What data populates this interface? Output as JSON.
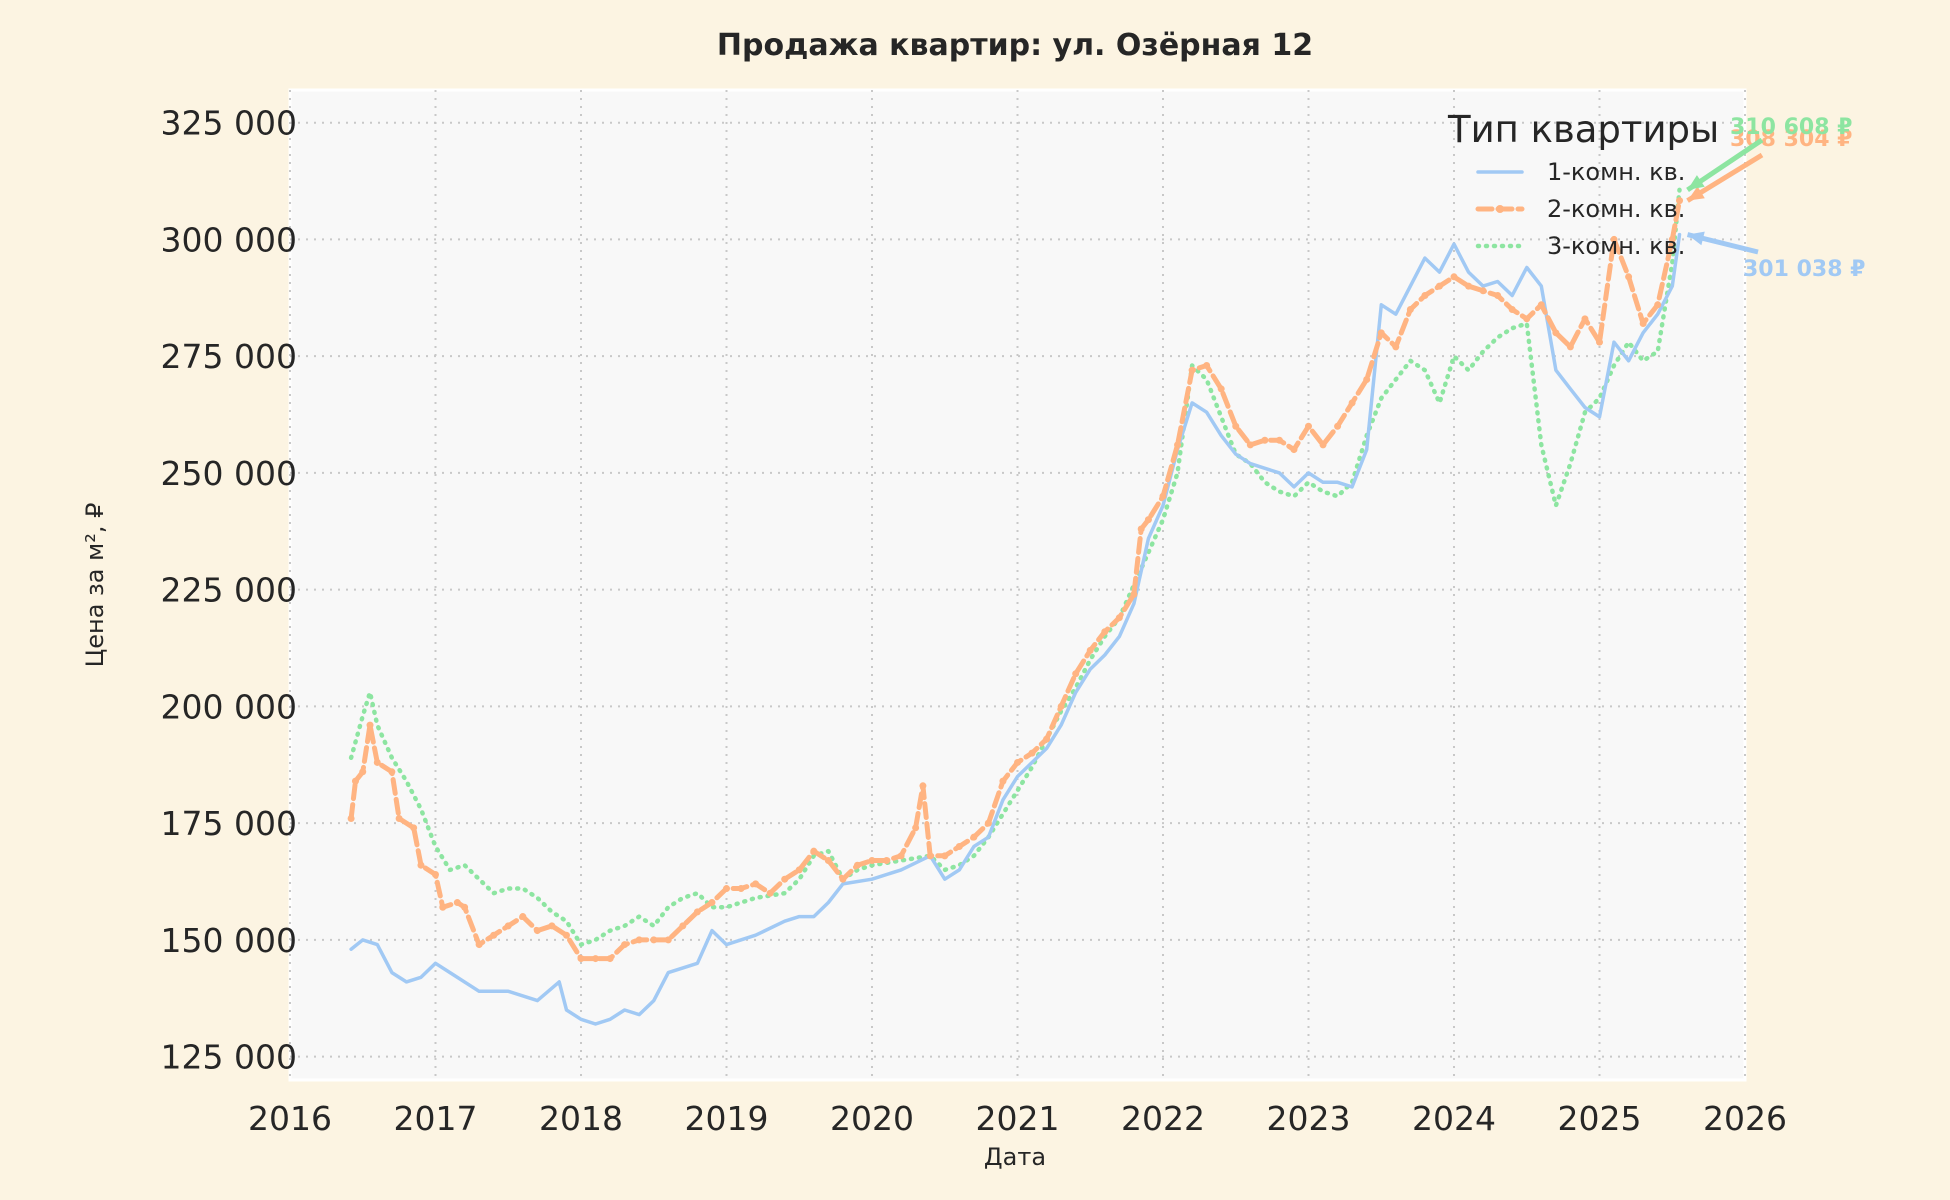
{
  "chart_data": {
    "type": "line",
    "title": "Продажа квартир: ул. Озёрная 12",
    "xlabel": "Дата",
    "ylabel": "Цена за м², ₽",
    "xlim": [
      2016,
      2026
    ],
    "ylim": [
      120000,
      332000
    ],
    "x_ticks": [
      "2016",
      "2017",
      "2018",
      "2019",
      "2020",
      "2021",
      "2022",
      "2023",
      "2024",
      "2025",
      "2026"
    ],
    "y_ticks": [
      125000,
      150000,
      175000,
      200000,
      225000,
      250000,
      275000,
      300000,
      325000
    ],
    "y_tick_labels": [
      "125 000",
      "150 000",
      "175 000",
      "200 000",
      "225 000",
      "250 000",
      "275 000",
      "300 000",
      "325 000"
    ],
    "grid": true,
    "legend": {
      "title": "Тип квартиры",
      "position": "top-right"
    },
    "series": [
      {
        "name": "1-комн. кв.",
        "color": "#a1c9f4",
        "style": "solid",
        "end_label": "301 038 ₽",
        "points": [
          [
            2016.42,
            148000
          ],
          [
            2016.5,
            150000
          ],
          [
            2016.6,
            149000
          ],
          [
            2016.7,
            143000
          ],
          [
            2016.8,
            141000
          ],
          [
            2016.9,
            142000
          ],
          [
            2017.0,
            145000
          ],
          [
            2017.1,
            143000
          ],
          [
            2017.3,
            139000
          ],
          [
            2017.5,
            139000
          ],
          [
            2017.7,
            137000
          ],
          [
            2017.85,
            141000
          ],
          [
            2017.9,
            135000
          ],
          [
            2018.0,
            133000
          ],
          [
            2018.1,
            132000
          ],
          [
            2018.2,
            133000
          ],
          [
            2018.3,
            135000
          ],
          [
            2018.4,
            134000
          ],
          [
            2018.5,
            137000
          ],
          [
            2018.6,
            143000
          ],
          [
            2018.7,
            144000
          ],
          [
            2018.8,
            145000
          ],
          [
            2018.9,
            152000
          ],
          [
            2019.0,
            149000
          ],
          [
            2019.2,
            151000
          ],
          [
            2019.4,
            154000
          ],
          [
            2019.5,
            155000
          ],
          [
            2019.6,
            155000
          ],
          [
            2019.7,
            158000
          ],
          [
            2019.8,
            162000
          ],
          [
            2020.0,
            163000
          ],
          [
            2020.2,
            165000
          ],
          [
            2020.4,
            168000
          ],
          [
            2020.5,
            163000
          ],
          [
            2020.6,
            165000
          ],
          [
            2020.7,
            170000
          ],
          [
            2020.8,
            172000
          ],
          [
            2020.9,
            180000
          ],
          [
            2021.0,
            185000
          ],
          [
            2021.1,
            188000
          ],
          [
            2021.2,
            191000
          ],
          [
            2021.3,
            196000
          ],
          [
            2021.4,
            203000
          ],
          [
            2021.5,
            208000
          ],
          [
            2021.6,
            211000
          ],
          [
            2021.7,
            215000
          ],
          [
            2021.8,
            222000
          ],
          [
            2021.9,
            236000
          ],
          [
            2022.0,
            243000
          ],
          [
            2022.1,
            255000
          ],
          [
            2022.2,
            265000
          ],
          [
            2022.3,
            263000
          ],
          [
            2022.4,
            258000
          ],
          [
            2022.5,
            254000
          ],
          [
            2022.6,
            252000
          ],
          [
            2022.7,
            251000
          ],
          [
            2022.8,
            250000
          ],
          [
            2022.9,
            247000
          ],
          [
            2023.0,
            250000
          ],
          [
            2023.1,
            248000
          ],
          [
            2023.2,
            248000
          ],
          [
            2023.3,
            247000
          ],
          [
            2023.4,
            255000
          ],
          [
            2023.5,
            286000
          ],
          [
            2023.6,
            284000
          ],
          [
            2023.7,
            290000
          ],
          [
            2023.8,
            296000
          ],
          [
            2023.9,
            293000
          ],
          [
            2024.0,
            299000
          ],
          [
            2024.1,
            293000
          ],
          [
            2024.2,
            290000
          ],
          [
            2024.3,
            291000
          ],
          [
            2024.4,
            288000
          ],
          [
            2024.5,
            294000
          ],
          [
            2024.6,
            290000
          ],
          [
            2024.7,
            272000
          ],
          [
            2024.8,
            268000
          ],
          [
            2024.9,
            264000
          ],
          [
            2025.0,
            262000
          ],
          [
            2025.1,
            278000
          ],
          [
            2025.2,
            274000
          ],
          [
            2025.3,
            280000
          ],
          [
            2025.4,
            284000
          ],
          [
            2025.5,
            290000
          ],
          [
            2025.55,
            301038
          ]
        ]
      },
      {
        "name": "2-комн. кв.",
        "color": "#ffb482",
        "style": "dashed-marker",
        "end_label": "308 304 ₽",
        "points": [
          [
            2016.42,
            176000
          ],
          [
            2016.45,
            184000
          ],
          [
            2016.5,
            186000
          ],
          [
            2016.55,
            196000
          ],
          [
            2016.6,
            188000
          ],
          [
            2016.7,
            186000
          ],
          [
            2016.75,
            176000
          ],
          [
            2016.85,
            174000
          ],
          [
            2016.9,
            166000
          ],
          [
            2017.0,
            164000
          ],
          [
            2017.05,
            157000
          ],
          [
            2017.15,
            158000
          ],
          [
            2017.2,
            157000
          ],
          [
            2017.3,
            149000
          ],
          [
            2017.4,
            151000
          ],
          [
            2017.5,
            153000
          ],
          [
            2017.6,
            155000
          ],
          [
            2017.7,
            152000
          ],
          [
            2017.8,
            153000
          ],
          [
            2017.9,
            151000
          ],
          [
            2018.0,
            146000
          ],
          [
            2018.1,
            146000
          ],
          [
            2018.2,
            146000
          ],
          [
            2018.3,
            149000
          ],
          [
            2018.4,
            150000
          ],
          [
            2018.5,
            150000
          ],
          [
            2018.6,
            150000
          ],
          [
            2018.7,
            153000
          ],
          [
            2018.8,
            156000
          ],
          [
            2018.9,
            158000
          ],
          [
            2019.0,
            161000
          ],
          [
            2019.1,
            161000
          ],
          [
            2019.2,
            162000
          ],
          [
            2019.3,
            160000
          ],
          [
            2019.4,
            163000
          ],
          [
            2019.5,
            165000
          ],
          [
            2019.6,
            169000
          ],
          [
            2019.7,
            167000
          ],
          [
            2019.8,
            163000
          ],
          [
            2019.9,
            166000
          ],
          [
            2020.0,
            167000
          ],
          [
            2020.1,
            167000
          ],
          [
            2020.2,
            168000
          ],
          [
            2020.3,
            174000
          ],
          [
            2020.35,
            183000
          ],
          [
            2020.4,
            168000
          ],
          [
            2020.5,
            168000
          ],
          [
            2020.6,
            170000
          ],
          [
            2020.7,
            172000
          ],
          [
            2020.8,
            175000
          ],
          [
            2020.9,
            184000
          ],
          [
            2021.0,
            188000
          ],
          [
            2021.1,
            190000
          ],
          [
            2021.2,
            193000
          ],
          [
            2021.3,
            200000
          ],
          [
            2021.4,
            207000
          ],
          [
            2021.5,
            212000
          ],
          [
            2021.6,
            216000
          ],
          [
            2021.7,
            219000
          ],
          [
            2021.8,
            224000
          ],
          [
            2021.85,
            238000
          ],
          [
            2021.9,
            240000
          ],
          [
            2022.0,
            245000
          ],
          [
            2022.1,
            256000
          ],
          [
            2022.2,
            272000
          ],
          [
            2022.3,
            273000
          ],
          [
            2022.4,
            268000
          ],
          [
            2022.5,
            260000
          ],
          [
            2022.6,
            256000
          ],
          [
            2022.7,
            257000
          ],
          [
            2022.8,
            257000
          ],
          [
            2022.9,
            255000
          ],
          [
            2023.0,
            260000
          ],
          [
            2023.1,
            256000
          ],
          [
            2023.2,
            260000
          ],
          [
            2023.3,
            265000
          ],
          [
            2023.4,
            270000
          ],
          [
            2023.5,
            280000
          ],
          [
            2023.6,
            277000
          ],
          [
            2023.7,
            285000
          ],
          [
            2023.8,
            288000
          ],
          [
            2023.9,
            290000
          ],
          [
            2024.0,
            292000
          ],
          [
            2024.1,
            290000
          ],
          [
            2024.2,
            289000
          ],
          [
            2024.3,
            288000
          ],
          [
            2024.4,
            285000
          ],
          [
            2024.5,
            283000
          ],
          [
            2024.6,
            286000
          ],
          [
            2024.7,
            280000
          ],
          [
            2024.8,
            277000
          ],
          [
            2024.9,
            283000
          ],
          [
            2025.0,
            278000
          ],
          [
            2025.1,
            300000
          ],
          [
            2025.2,
            292000
          ],
          [
            2025.3,
            282000
          ],
          [
            2025.4,
            286000
          ],
          [
            2025.5,
            300000
          ],
          [
            2025.55,
            308304
          ]
        ]
      },
      {
        "name": "3-комн. кв.",
        "color": "#8de5a1",
        "style": "dotted",
        "end_label": "310 608 ₽",
        "points": [
          [
            2016.42,
            189000
          ],
          [
            2016.5,
            198000
          ],
          [
            2016.55,
            203000
          ],
          [
            2016.6,
            196000
          ],
          [
            2016.7,
            189000
          ],
          [
            2016.8,
            184000
          ],
          [
            2016.9,
            178000
          ],
          [
            2017.0,
            170000
          ],
          [
            2017.1,
            165000
          ],
          [
            2017.2,
            166000
          ],
          [
            2017.3,
            163000
          ],
          [
            2017.4,
            160000
          ],
          [
            2017.5,
            161000
          ],
          [
            2017.6,
            161000
          ],
          [
            2017.7,
            159000
          ],
          [
            2017.8,
            156000
          ],
          [
            2017.9,
            154000
          ],
          [
            2018.0,
            149000
          ],
          [
            2018.1,
            150000
          ],
          [
            2018.2,
            152000
          ],
          [
            2018.3,
            153000
          ],
          [
            2018.4,
            155000
          ],
          [
            2018.5,
            153000
          ],
          [
            2018.6,
            157000
          ],
          [
            2018.7,
            159000
          ],
          [
            2018.8,
            160000
          ],
          [
            2018.9,
            157000
          ],
          [
            2019.0,
            157000
          ],
          [
            2019.2,
            159000
          ],
          [
            2019.4,
            160000
          ],
          [
            2019.5,
            163000
          ],
          [
            2019.6,
            168000
          ],
          [
            2019.7,
            169000
          ],
          [
            2019.8,
            163000
          ],
          [
            2019.9,
            165000
          ],
          [
            2020.0,
            166000
          ],
          [
            2020.2,
            167000
          ],
          [
            2020.4,
            168000
          ],
          [
            2020.5,
            165000
          ],
          [
            2020.6,
            166000
          ],
          [
            2020.7,
            168000
          ],
          [
            2020.8,
            172000
          ],
          [
            2020.9,
            177000
          ],
          [
            2021.0,
            182000
          ],
          [
            2021.1,
            187000
          ],
          [
            2021.2,
            193000
          ],
          [
            2021.3,
            199000
          ],
          [
            2021.4,
            204000
          ],
          [
            2021.5,
            210000
          ],
          [
            2021.6,
            215000
          ],
          [
            2021.7,
            219000
          ],
          [
            2021.8,
            226000
          ],
          [
            2021.9,
            233000
          ],
          [
            2022.0,
            240000
          ],
          [
            2022.1,
            250000
          ],
          [
            2022.2,
            273000
          ],
          [
            2022.3,
            270000
          ],
          [
            2022.4,
            262000
          ],
          [
            2022.5,
            254000
          ],
          [
            2022.6,
            252000
          ],
          [
            2022.7,
            248000
          ],
          [
            2022.8,
            246000
          ],
          [
            2022.9,
            245000
          ],
          [
            2023.0,
            248000
          ],
          [
            2023.1,
            246000
          ],
          [
            2023.2,
            245000
          ],
          [
            2023.3,
            248000
          ],
          [
            2023.4,
            258000
          ],
          [
            2023.5,
            266000
          ],
          [
            2023.6,
            270000
          ],
          [
            2023.7,
            274000
          ],
          [
            2023.8,
            272000
          ],
          [
            2023.9,
            265000
          ],
          [
            2024.0,
            275000
          ],
          [
            2024.1,
            272000
          ],
          [
            2024.2,
            276000
          ],
          [
            2024.3,
            279000
          ],
          [
            2024.4,
            281000
          ],
          [
            2024.5,
            282000
          ],
          [
            2024.6,
            256000
          ],
          [
            2024.7,
            243000
          ],
          [
            2024.8,
            252000
          ],
          [
            2024.9,
            263000
          ],
          [
            2025.0,
            266000
          ],
          [
            2025.1,
            273000
          ],
          [
            2025.2,
            278000
          ],
          [
            2025.3,
            274000
          ],
          [
            2025.4,
            276000
          ],
          [
            2025.5,
            295000
          ],
          [
            2025.55,
            310608
          ]
        ]
      }
    ]
  }
}
